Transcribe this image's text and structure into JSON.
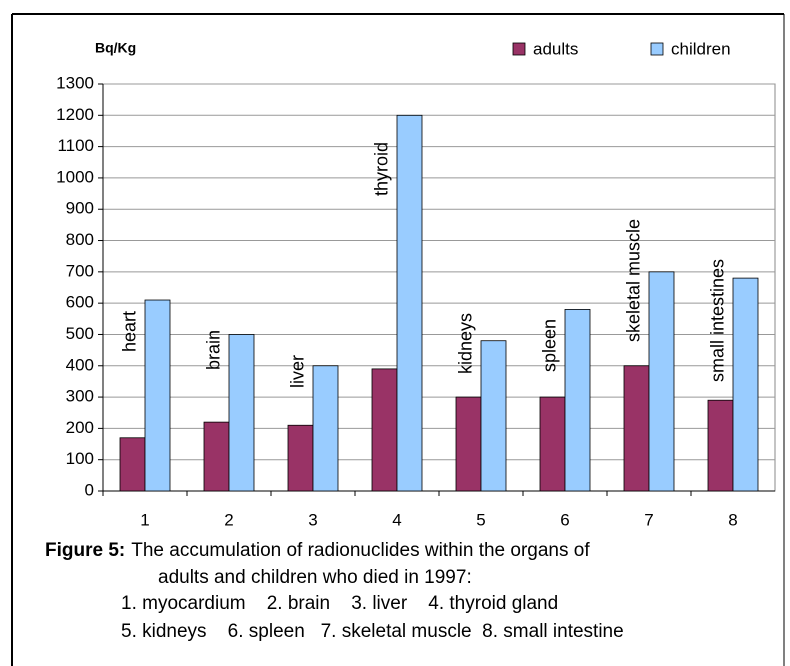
{
  "chart_data": {
    "type": "bar",
    "y_axis_label": "Bq/Kg",
    "categories": [
      "1",
      "2",
      "3",
      "4",
      "5",
      "6",
      "7",
      "8"
    ],
    "series": [
      {
        "name": "adults",
        "color": "#993366",
        "values": [
          170,
          220,
          210,
          390,
          300,
          300,
          400,
          290
        ]
      },
      {
        "name": "children",
        "color": "#99ccff",
        "values": [
          610,
          500,
          400,
          1200,
          480,
          580,
          700,
          680
        ]
      }
    ],
    "annotations": [
      "heart",
      "brain",
      "liver",
      "thyroid",
      "kidneys",
      "spleen",
      "skeletal muscle",
      "small intestines"
    ],
    "ylim": [
      0,
      1300
    ],
    "yticks": [
      0,
      100,
      200,
      300,
      400,
      500,
      600,
      700,
      800,
      900,
      1000,
      1100,
      1200,
      1300
    ],
    "grid": true,
    "legend": "top-right",
    "caption": {
      "label": "Figure 5:",
      "lines": [
        "The accumulation of radionuclides within the organs of",
        "adults and children who died in 1997:",
        "1. myocardium    2. brain    3. liver    4. thyroid gland",
        "5. kidneys    6. spleen   7. skeletal muscle  8. small intestine"
      ]
    }
  }
}
